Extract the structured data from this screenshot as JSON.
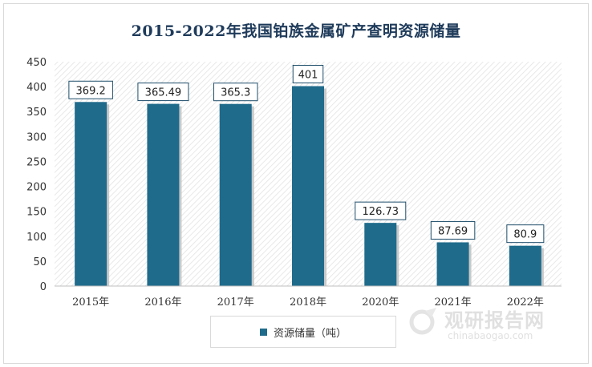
{
  "chart_data": {
    "type": "bar",
    "title": "2015-2022年我国铂族金属矿产查明资源储量",
    "categories": [
      "2015年",
      "2016年",
      "2017年",
      "2018年",
      "2020年",
      "2021年",
      "2022年"
    ],
    "series": [
      {
        "name": "资源储量（吨）",
        "values": [
          369.2,
          365.49,
          365.3,
          401,
          126.73,
          87.69,
          80.9
        ]
      }
    ],
    "value_labels": [
      "369.2",
      "365.49",
      "365.3",
      "401",
      "126.73",
      "87.69",
      "80.9"
    ],
    "ylim": [
      0,
      450
    ],
    "yticks": [
      "0",
      "50",
      "100",
      "150",
      "200",
      "250",
      "300",
      "350",
      "400",
      "450"
    ],
    "xlabel": "",
    "ylabel": "",
    "legend_position": "bottom",
    "bar_color": "#1f6b8c",
    "grid": false
  },
  "watermark": {
    "text_cn": "观研报告网",
    "text_en": "chinabaogao.com"
  }
}
